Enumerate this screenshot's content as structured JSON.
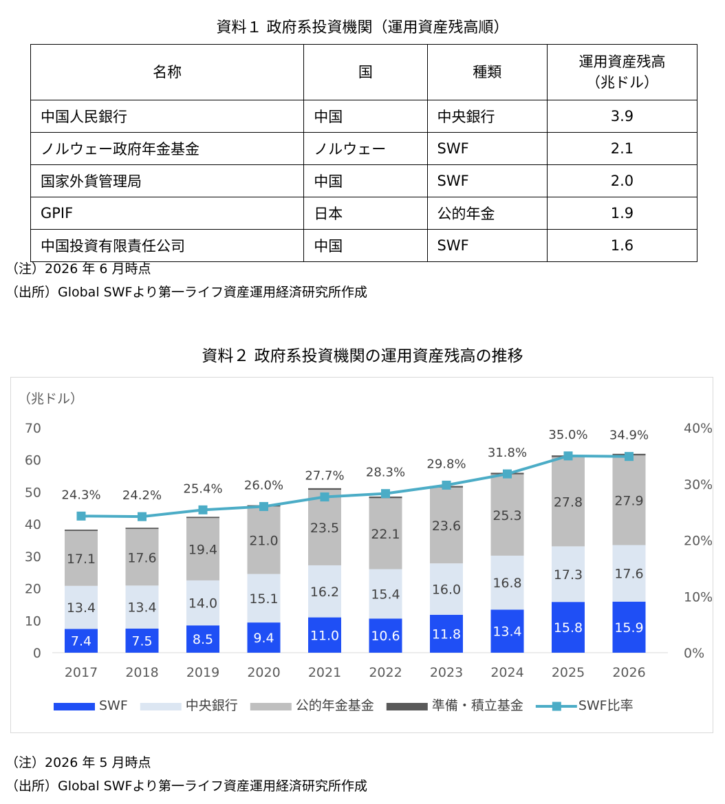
{
  "table1": {
    "title": "資料１ 政府系投資機関（運用資産残高順）",
    "headers": [
      "名称",
      "国",
      "種類",
      "運用資産残高\n（兆ドル）"
    ],
    "rows": [
      [
        "中国人民銀行",
        "中国",
        "中央銀行",
        "3.9"
      ],
      [
        "ノルウェー政府年金基金",
        "ノルウェー",
        "SWF",
        "2.1"
      ],
      [
        "国家外貨管理局",
        "中国",
        "SWF",
        "2.0"
      ],
      [
        "GPIF",
        "日本",
        "公的年金",
        "1.9"
      ],
      [
        "中国投資有限責任公司",
        "中国",
        "SWF",
        "1.6"
      ]
    ],
    "note": "（注）2026 年 6 月時点",
    "source": "（出所）Global SWFより第一ライフ資産運用経済研究所作成"
  },
  "chart2": {
    "title": "資料２ 政府系投資機関の運用資産残高の推移",
    "note": "（注）2026 年 5 月時点",
    "source": "（出所）Global SWFより第一ライフ資産運用経済研究所作成"
  },
  "chart_data": {
    "type": "bar",
    "stacked": true,
    "unit_label": "（兆ドル）",
    "categories": [
      "2017",
      "2018",
      "2019",
      "2020",
      "2021",
      "2022",
      "2023",
      "2024",
      "2025",
      "2026"
    ],
    "series": [
      {
        "name": "SWF",
        "color": "#1f4ff5",
        "values": [
          7.4,
          7.5,
          8.5,
          9.4,
          11.0,
          10.6,
          11.8,
          13.4,
          15.8,
          15.9
        ],
        "labels": [
          "7.4",
          "7.5",
          "8.5",
          "9.4",
          "11.0",
          "10.6",
          "11.8",
          "13.4",
          "15.8",
          "15.9"
        ]
      },
      {
        "name": "中央銀行",
        "color": "#dce6f2",
        "values": [
          13.4,
          13.4,
          14.0,
          15.1,
          16.2,
          15.4,
          16.0,
          16.8,
          17.3,
          17.6
        ],
        "labels": [
          "13.4",
          "13.4",
          "14.0",
          "15.1",
          "16.2",
          "15.4",
          "16.0",
          "16.8",
          "17.3",
          "17.6"
        ]
      },
      {
        "name": "公的年金基金",
        "color": "#bfbfbf",
        "values": [
          17.1,
          17.6,
          19.4,
          21.0,
          23.5,
          22.1,
          23.6,
          25.3,
          27.8,
          27.9
        ],
        "labels": [
          "17.1",
          "17.6",
          "19.4",
          "21.0",
          "23.5",
          "22.1",
          "23.6",
          "25.3",
          "27.8",
          "27.9"
        ]
      },
      {
        "name": "準備・積立基金",
        "color": "#595959",
        "values": [
          0.4,
          0.4,
          0.4,
          0.4,
          0.5,
          0.5,
          0.5,
          0.5,
          0.5,
          0.5
        ]
      }
    ],
    "line_series": {
      "name": "SWF比率",
      "color": "#4bacc6",
      "values": [
        24.3,
        24.2,
        25.4,
        26.0,
        27.7,
        28.3,
        29.8,
        31.8,
        35.0,
        34.9
      ],
      "labels": [
        "24.3%",
        "24.2%",
        "25.4%",
        "26.0%",
        "27.7%",
        "28.3%",
        "29.8%",
        "31.8%",
        "35.0%",
        "34.9%"
      ]
    },
    "y_left": {
      "min": 0,
      "max": 70,
      "ticks": [
        "0",
        "10",
        "20",
        "30",
        "40",
        "50",
        "60",
        "70"
      ]
    },
    "y_right": {
      "min": 0,
      "max": 40,
      "ticks": [
        "0%",
        "10%",
        "20%",
        "30%",
        "40%"
      ]
    },
    "legend_position": "bottom",
    "grid": false
  }
}
